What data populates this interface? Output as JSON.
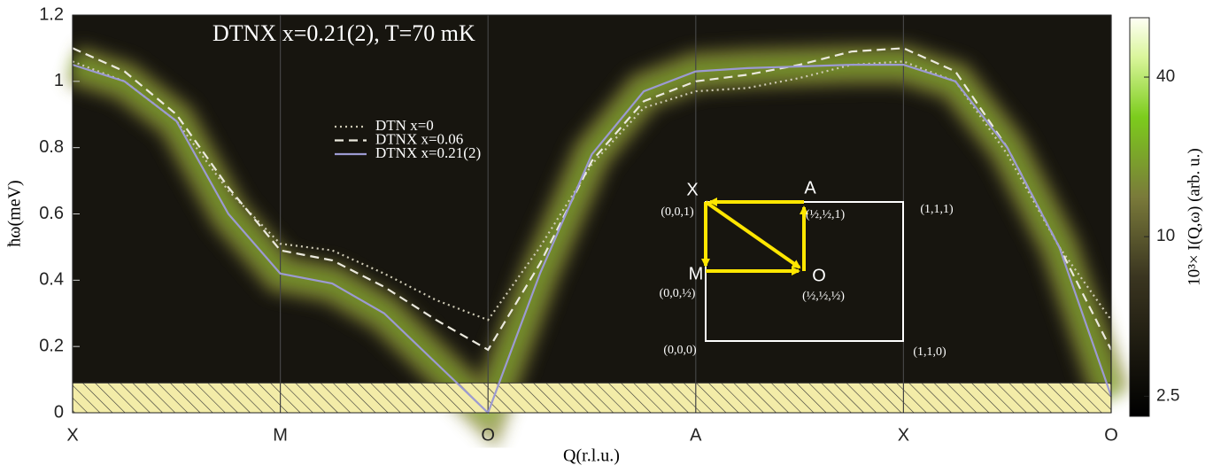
{
  "chart_data": {
    "type": "line",
    "title": "DTNX x=0.21(2), T=70 mK",
    "xlabel": "Q(r.l.u.)",
    "ylabel": "ħω(meV)",
    "x": [
      0,
      0.25,
      0.5,
      0.75,
      1,
      1.25,
      1.5,
      1.75,
      2,
      2.25,
      2.5,
      2.75,
      3,
      3.25,
      3.5,
      3.75,
      4,
      4.25,
      4.5,
      4.75,
      5
    ],
    "xlim": [
      0,
      5
    ],
    "xticks": [
      {
        "value": 0,
        "label": "X"
      },
      {
        "value": 1,
        "label": "M"
      },
      {
        "value": 2,
        "label": "O"
      },
      {
        "value": 3,
        "label": "A"
      },
      {
        "value": 4,
        "label": "X"
      },
      {
        "value": 5,
        "label": "O"
      }
    ],
    "ylim": [
      0,
      1.2
    ],
    "yticks": [
      0,
      0.2,
      0.4,
      0.6,
      0.8,
      1,
      1.2
    ],
    "xgrid": true,
    "hatched_below": 0.09,
    "legend": "upper center",
    "series": [
      {
        "name": "DTN x=0",
        "color": "#cdc9b4",
        "style": "dotted",
        "values": [
          1.06,
          1.0,
          0.88,
          0.67,
          0.51,
          0.49,
          0.42,
          0.34,
          0.28,
          0.5,
          0.75,
          0.92,
          0.97,
          0.98,
          1.01,
          1.05,
          1.06,
          1.0,
          0.78,
          0.5,
          0.28
        ]
      },
      {
        "name": "DTNX x=0.06",
        "color": "#ebe9de",
        "style": "dashed",
        "values": [
          1.1,
          1.03,
          0.9,
          0.68,
          0.49,
          0.46,
          0.38,
          0.28,
          0.19,
          0.45,
          0.76,
          0.94,
          1.0,
          1.02,
          1.05,
          1.09,
          1.1,
          1.03,
          0.8,
          0.5,
          0.19
        ]
      },
      {
        "name": "DTNX x=0.21(2)",
        "color": "#9c9ad2",
        "style": "solid",
        "values": [
          1.05,
          1.0,
          0.88,
          0.6,
          0.42,
          0.39,
          0.3,
          0.15,
          0.0,
          0.42,
          0.78,
          0.97,
          1.03,
          1.04,
          1.045,
          1.05,
          1.05,
          1.0,
          0.8,
          0.5,
          0.05
        ]
      }
    ],
    "colorbar": {
      "label": "10³× I(Q,ω) (arb. u.)",
      "clim": [
        2.1,
        67
      ],
      "ticks": [
        2.5,
        10,
        40
      ],
      "log": true
    },
    "inset": {
      "points": [
        {
          "label": "X",
          "coord": "(0,0,1)"
        },
        {
          "label": "A",
          "coord": "(½,½,1)"
        },
        {
          "label": "M",
          "coord": "(0,0,½)"
        },
        {
          "label": "O",
          "coord": "(½,½,½)"
        }
      ],
      "corners": [
        "(1,1,1)",
        "(0,0,0)",
        "(1,1,0)"
      ]
    }
  }
}
